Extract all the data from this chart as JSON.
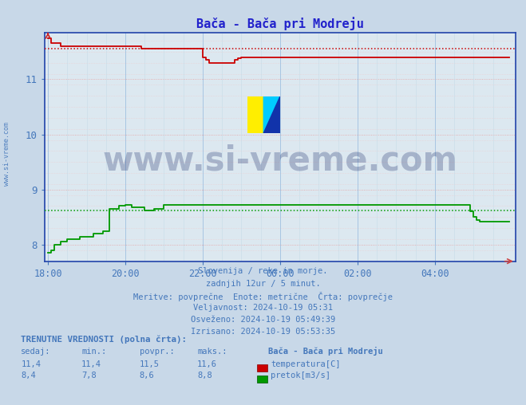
{
  "title": "Bača - Bača pri Modreju",
  "title_color": "#2222cc",
  "bg_color": "#c8d8e8",
  "plot_bg_color": "#dce8f0",
  "grid_color_major_r": "#e8a0a0",
  "grid_color_major_g": "#a0c0e0",
  "grid_color_minor_r": "#f0c8c8",
  "grid_color_minor_g": "#c8dce8",
  "axis_color": "#2244aa",
  "text_color": "#4477bb",
  "xlabel_color": "#4477bb",
  "watermark_text": "www.si-vreme.com",
  "watermark_color": "#1a2a6a",
  "watermark_alpha": 0.28,
  "ylim": [
    7.7,
    11.85
  ],
  "yticks": [
    8,
    9,
    10,
    11
  ],
  "xtick_labels": [
    "18:00",
    "20:00",
    "22:00",
    "00:00",
    "02:00",
    "04:00"
  ],
  "xtick_positions": [
    0,
    24,
    48,
    72,
    96,
    120
  ],
  "xmin": -1,
  "xmax": 145,
  "temp_color": "#cc0000",
  "flow_color": "#009900",
  "caption_lines": [
    "Slovenija / reke in morje.",
    "zadnjih 12ur / 5 minut.",
    "Meritve: povprečne  Enote: metrične  Črta: povprečje",
    "Veljavnost: 2024-10-19 05:31",
    "Osveženo: 2024-10-19 05:49:39",
    "Izrisano: 2024-10-19 05:53:35"
  ],
  "legend_title": "TRENUTNE VREDNOSTI (polna črta):",
  "legend_cols": [
    "sedaj:",
    "min.:",
    "povpr.:",
    "maks.:"
  ],
  "legend_station": "Bača - Bača pri Modreju",
  "legend_temp_values": [
    "11,4",
    "11,4",
    "11,5",
    "11,6"
  ],
  "legend_flow_values": [
    "8,4",
    "7,8",
    "8,6",
    "8,8"
  ],
  "legend_temp_label": "temperatura[C]",
  "legend_flow_label": "pretok[m3/s]",
  "temp_avg_value": 11.55,
  "flow_avg_value": 8.62,
  "sidewater": "www.si-vreme.com"
}
